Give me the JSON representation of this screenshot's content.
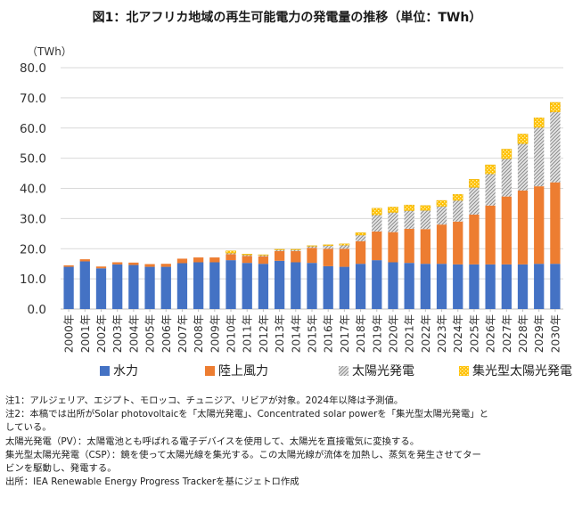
{
  "figure": {
    "title": "図1：北アフリカ地域の再生可能電力の発電量の推移（単位：TWh）"
  },
  "chart_data": {
    "type": "bar",
    "stacked": true,
    "unit_label": "（TWh）",
    "ylim": [
      0,
      80
    ],
    "yticks": [
      "0.0",
      "10.0",
      "20.0",
      "30.0",
      "40.0",
      "50.0",
      "60.0",
      "70.0",
      "80.0"
    ],
    "grid": true,
    "legend_position": "bottom",
    "categories": [
      "2000年",
      "2001年",
      "2002年",
      "2003年",
      "2004年",
      "2005年",
      "2006年",
      "2007年",
      "2008年",
      "2009年",
      "2010年",
      "2011年",
      "2012年",
      "2013年",
      "2014年",
      "2015年",
      "2016年",
      "2017年",
      "2018年",
      "2019年",
      "2020年",
      "2021年",
      "2022年",
      "2023年",
      "2024年",
      "2025年",
      "2026年",
      "2027年",
      "2028年",
      "2029年",
      "2030年"
    ],
    "series": [
      {
        "name": "水力",
        "color": "#4472c4",
        "pattern": "solid",
        "values": [
          14.0,
          15.8,
          13.5,
          14.8,
          14.6,
          14.0,
          14.0,
          15.2,
          15.5,
          15.5,
          16.2,
          15.3,
          15.0,
          16.0,
          15.5,
          15.3,
          14.2,
          14.0,
          15.0,
          16.2,
          15.5,
          15.3,
          15.0,
          15.0,
          14.8,
          14.8,
          14.8,
          14.8,
          14.8,
          15.0,
          15.0
        ]
      },
      {
        "name": "陸上風力",
        "color": "#ed7d31",
        "pattern": "solid",
        "values": [
          0.5,
          0.7,
          0.6,
          0.7,
          0.8,
          0.9,
          1.0,
          1.5,
          1.6,
          1.6,
          2.0,
          2.3,
          2.5,
          3.2,
          3.7,
          5.0,
          5.8,
          6.0,
          7.5,
          9.5,
          10.0,
          11.3,
          11.5,
          13.0,
          14.2,
          16.5,
          19.5,
          22.5,
          24.5,
          25.7,
          27.0
        ]
      },
      {
        "name": "太陽光発電",
        "color": "#a6a6a6",
        "pattern": "hatch",
        "values": [
          0,
          0,
          0,
          0,
          0,
          0,
          0,
          0,
          0,
          0,
          0.3,
          0.3,
          0.3,
          0.4,
          0.4,
          0.5,
          1.0,
          1.2,
          2.0,
          5.5,
          6.5,
          6.0,
          6.2,
          6.0,
          7.0,
          9.0,
          10.5,
          12.5,
          15.5,
          19.5,
          23.3
        ]
      },
      {
        "name": "集光型太陽光発電",
        "color": "#ffc000",
        "pattern": "dots",
        "values": [
          0,
          0,
          0,
          0,
          0,
          0,
          0,
          0,
          0,
          0,
          0.8,
          0.3,
          0.2,
          0.2,
          0.2,
          0.2,
          0.3,
          0.4,
          0.8,
          2.2,
          1.8,
          1.9,
          1.6,
          2.0,
          2.0,
          2.7,
          3.0,
          3.2,
          3.2,
          3.2,
          3.2
        ]
      }
    ]
  },
  "notes": [
    "注1：アルジェリア、エジプト、モロッコ、チュニジア、リビアが対象。2024年以降は予測値。",
    "注2：本稿では出所がSolar photovoltaicを「太陽光発電」、Concentrated solar powerを「集光型太陽光発電」と",
    "している。",
    "太陽光発電（PV）：太陽電池とも呼ばれる電子デバイスを使用して、太陽光を直接電気に変換する。",
    "集光型太陽光発電（CSP）：鏡を使って太陽光線を集光する。この太陽光線が流体を加熱し、蒸気を発生させてター",
    "ビンを駆動し、発電する。",
    "出所：IEA Renewable Energy Progress Trackerを基にジェトロ作成"
  ]
}
